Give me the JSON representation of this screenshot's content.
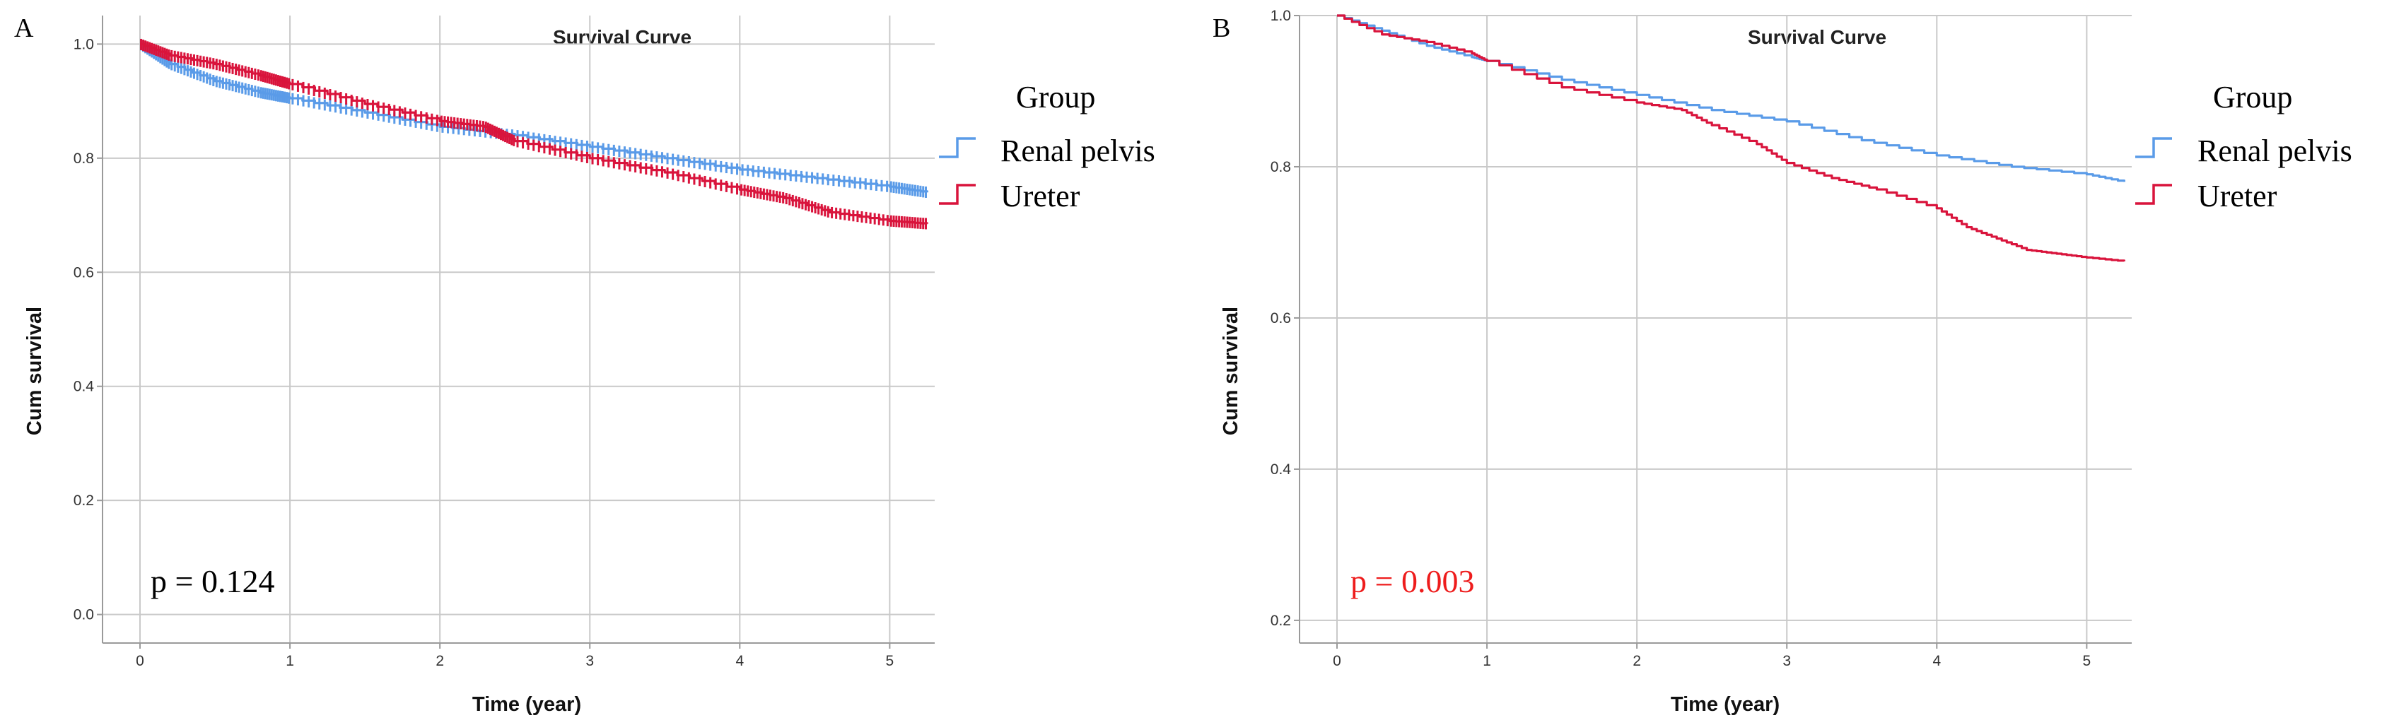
{
  "panels": [
    {
      "letter": "A",
      "p_value": "p = 0.124",
      "p_color": "#000000"
    },
    {
      "letter": "B",
      "p_value": "p = 0.003",
      "p_color": "#ee1c1c"
    }
  ],
  "colors": {
    "renal_pelvis": "#5a9be8",
    "ureter": "#d9143c"
  },
  "chart_data": [
    {
      "type": "line",
      "title": "Survival Curve",
      "xlabel": "Time (year)",
      "ylabel": "Cum survival",
      "xlim": [
        -0.25,
        5.3
      ],
      "ylim": [
        -0.05,
        1.05
      ],
      "xticks": [
        0,
        1,
        2,
        3,
        4,
        5
      ],
      "yticks": [
        0.0,
        0.2,
        0.4,
        0.6,
        0.8,
        1.0
      ],
      "ytick_labels": [
        "0.0",
        "0.2",
        "0.4",
        "0.6",
        "0.8",
        "1.0"
      ],
      "legend_title": "Group",
      "censor_marks": true,
      "series": [
        {
          "name": "Renal pelvis",
          "color": "#5a9be8",
          "x": [
            0,
            0.2,
            0.5,
            0.8,
            1.0,
            1.5,
            2.0,
            2.5,
            3.0,
            3.5,
            4.0,
            4.5,
            5.0,
            5.25
          ],
          "y": [
            1.0,
            0.965,
            0.935,
            0.915,
            0.905,
            0.88,
            0.855,
            0.84,
            0.82,
            0.8,
            0.78,
            0.765,
            0.75,
            0.74
          ]
        },
        {
          "name": "Ureter",
          "color": "#d9143c",
          "x": [
            0,
            0.2,
            0.5,
            0.8,
            1.0,
            1.5,
            2.0,
            2.3,
            2.5,
            3.0,
            3.5,
            4.0,
            4.3,
            4.6,
            5.0,
            5.25
          ],
          "y": [
            1.0,
            0.98,
            0.965,
            0.945,
            0.93,
            0.895,
            0.865,
            0.855,
            0.83,
            0.8,
            0.775,
            0.745,
            0.73,
            0.705,
            0.69,
            0.685
          ]
        }
      ]
    },
    {
      "type": "line",
      "title": "Survival Curve",
      "xlabel": "Time (year)",
      "ylabel": "Cum survival",
      "xlim": [
        -0.25,
        5.3
      ],
      "ylim": [
        0.17,
        1.0
      ],
      "xticks": [
        0,
        1,
        2,
        3,
        4,
        5
      ],
      "yticks": [
        0.2,
        0.4,
        0.6,
        0.8,
        1.0
      ],
      "ytick_labels": [
        "0.2",
        "0.4",
        "0.6",
        "0.8",
        "1.0"
      ],
      "legend_title": "Group",
      "censor_marks": false,
      "series": [
        {
          "name": "Renal pelvis",
          "color": "#5a9be8",
          "x": [
            0,
            0.3,
            0.6,
            0.9,
            1.0,
            1.5,
            2.0,
            2.5,
            3.0,
            3.5,
            4.0,
            4.5,
            5.0,
            5.25
          ],
          "y": [
            1.0,
            0.98,
            0.96,
            0.945,
            0.94,
            0.915,
            0.895,
            0.875,
            0.86,
            0.835,
            0.815,
            0.8,
            0.79,
            0.78
          ]
        },
        {
          "name": "Ureter",
          "color": "#d9143c",
          "x": [
            0,
            0.3,
            0.6,
            0.9,
            1.0,
            1.5,
            2.0,
            2.3,
            2.5,
            2.8,
            3.0,
            3.3,
            3.6,
            4.0,
            4.2,
            4.4,
            4.6,
            4.8,
            5.0,
            5.25
          ],
          "y": [
            1.0,
            0.975,
            0.965,
            0.95,
            0.94,
            0.905,
            0.885,
            0.875,
            0.855,
            0.83,
            0.805,
            0.785,
            0.77,
            0.745,
            0.72,
            0.705,
            0.69,
            0.685,
            0.68,
            0.675
          ]
        }
      ]
    }
  ]
}
